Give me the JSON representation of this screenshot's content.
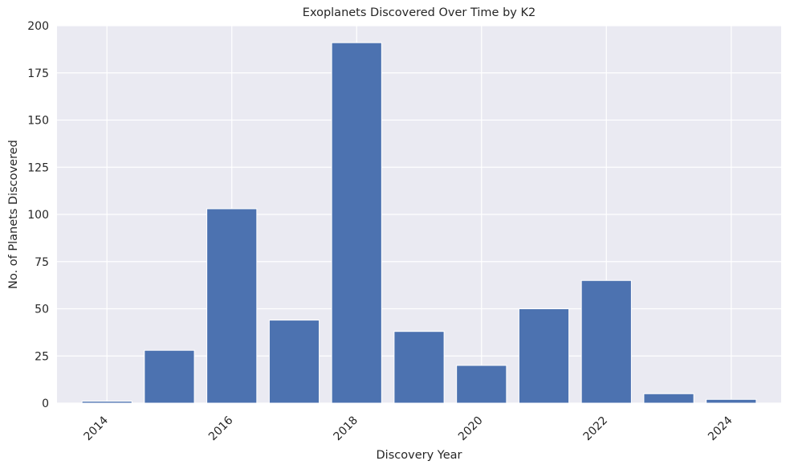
{
  "chart_data": {
    "type": "bar",
    "title": "Exoplanets Discovered Over Time by K2",
    "xlabel": "Discovery Year",
    "ylabel": "No. of Planets Discovered",
    "categories": [
      2014,
      2015,
      2016,
      2017,
      2018,
      2019,
      2020,
      2021,
      2022,
      2023,
      2024
    ],
    "values": [
      1,
      28,
      103,
      44,
      191,
      38,
      20,
      50,
      65,
      5,
      2
    ],
    "x_ticks": [
      "2014",
      "2016",
      "2018",
      "2020",
      "2022",
      "2024"
    ],
    "y_ticks": [
      "0",
      "25",
      "50",
      "75",
      "100",
      "125",
      "150",
      "175",
      "200"
    ],
    "xlim": [
      2013.2,
      2024.8
    ],
    "ylim": [
      0,
      200
    ],
    "grid": true,
    "bar_color": "#4c72b0",
    "background_color": "#eaeaf2"
  }
}
